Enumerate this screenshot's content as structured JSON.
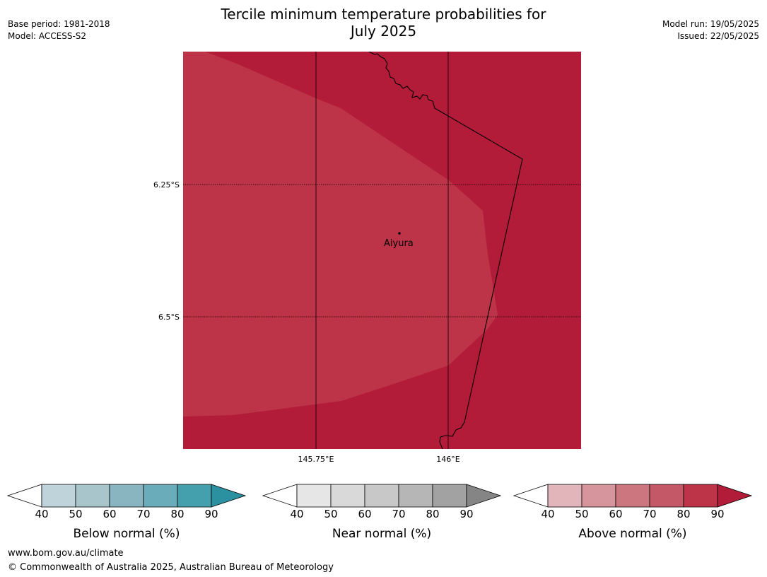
{
  "title": {
    "line1": "Tercile minimum temperature probabilities for",
    "line2": "July 2025"
  },
  "meta_left": {
    "base_period": "Base period: 1981-2018",
    "model": "Model: ACCESS-S2"
  },
  "meta_right": {
    "model_run": "Model run: 19/05/2025",
    "issued": "Issued: 22/05/2025"
  },
  "map": {
    "lat_labels": [
      "6.25°S",
      "6.5°S"
    ],
    "lon_labels": [
      "145.75°E",
      "146°E"
    ],
    "place": "Aiyura",
    "colors": {
      "above_80": "#bd3448",
      "above_90": "#b21c38",
      "boundary": "#000000"
    }
  },
  "colorbars": [
    {
      "name": "below",
      "title": "Below normal (%)",
      "ticks": [
        "40",
        "50",
        "60",
        "70",
        "80",
        "90"
      ],
      "colors": [
        "#bfd4da",
        "#a7c5cb",
        "#89b5c1",
        "#6aacba",
        "#45a0ad",
        "#2b91a0"
      ]
    },
    {
      "name": "near",
      "title": "Near normal (%)",
      "ticks": [
        "40",
        "50",
        "60",
        "70",
        "80",
        "90"
      ],
      "colors": [
        "#e6e6e6",
        "#d9d9d9",
        "#c8c8c8",
        "#b6b6b6",
        "#a2a2a2",
        "#858585"
      ]
    },
    {
      "name": "above",
      "title": "Above normal (%)",
      "ticks": [
        "40",
        "50",
        "60",
        "70",
        "80",
        "90"
      ],
      "colors": [
        "#e2b5ba",
        "#d6949c",
        "#cc7780",
        "#c45866",
        "#bd3448",
        "#b21c38"
      ]
    }
  ],
  "footer": {
    "url": "www.bom.gov.au/climate",
    "copyright": "© Commonwealth of Australia 2025, Australian Bureau of Meteorology"
  }
}
